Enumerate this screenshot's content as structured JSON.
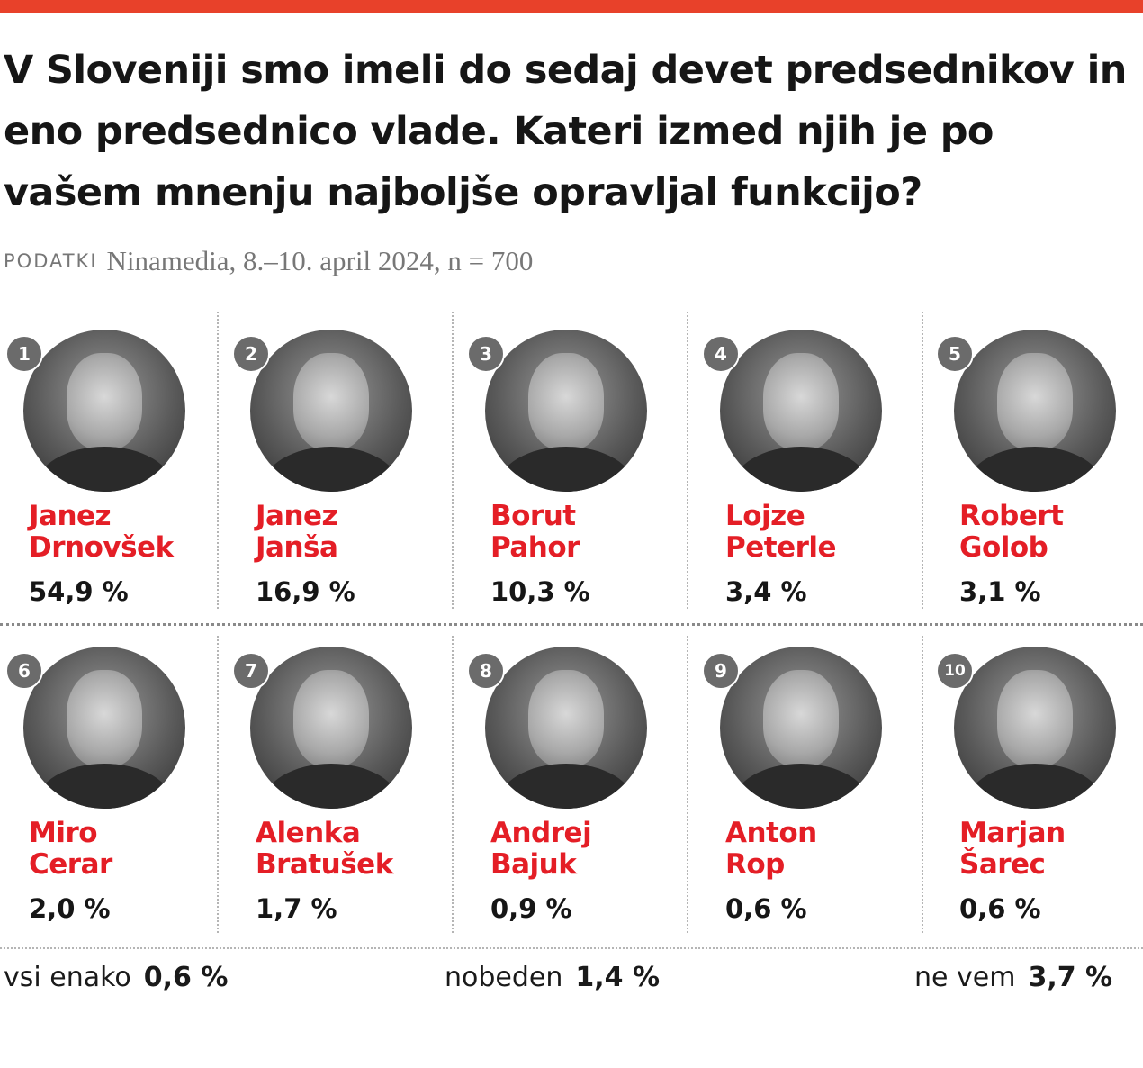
{
  "header": {
    "title": "V Sloveniji smo imeli do sedaj devet predsednikov in eno predsednico vlade. Kateri izmed njih je po vašem mnenju najboljše opravljal funkcijo?",
    "source_label": "PODATKI",
    "source_text": "Ninamedia, 8.–10. april 2024, n = 700"
  },
  "colors": {
    "accent": "#e8412a",
    "name": "#e41e26",
    "badge": "#6b6b6b"
  },
  "chart_data": {
    "type": "table",
    "title": "V Sloveniji smo imeli do sedaj devet predsednikov in eno predsednico vlade. Kateri izmed njih je po vašem mnenju najboljše opravljal funkcijo?",
    "unit": "%",
    "rows": [
      {
        "rank": "1",
        "first": "Janez",
        "last": "Drnovšek",
        "value": 54.9,
        "label": "54,9 %"
      },
      {
        "rank": "2",
        "first": "Janez",
        "last": "Janša",
        "value": 16.9,
        "label": "16,9 %"
      },
      {
        "rank": "3",
        "first": "Borut",
        "last": "Pahor",
        "value": 10.3,
        "label": "10,3 %"
      },
      {
        "rank": "4",
        "first": "Lojze",
        "last": "Peterle",
        "value": 3.4,
        "label": "3,4 %"
      },
      {
        "rank": "5",
        "first": "Robert",
        "last": "Golob",
        "value": 3.1,
        "label": "3,1 %"
      },
      {
        "rank": "6",
        "first": "Miro",
        "last": "Cerar",
        "value": 2.0,
        "label": "2,0 %"
      },
      {
        "rank": "7",
        "first": "Alenka",
        "last": "Bratušek",
        "value": 1.7,
        "label": "1,7 %"
      },
      {
        "rank": "8",
        "first": "Andrej",
        "last": "Bajuk",
        "value": 0.9,
        "label": "0,9 %"
      },
      {
        "rank": "9",
        "first": "Anton",
        "last": "Rop",
        "value": 0.6,
        "label": "0,6 %"
      },
      {
        "rank": "10",
        "first": "Marjan",
        "last": "Šarec",
        "value": 0.6,
        "label": "0,6 %"
      }
    ],
    "other": [
      {
        "label": "vsi enako",
        "value": 0.6,
        "value_label": "0,6 %"
      },
      {
        "label": "nobeden",
        "value": 1.4,
        "value_label": "1,4 %"
      },
      {
        "label": "ne vem",
        "value": 3.7,
        "value_label": "3,7 %"
      }
    ]
  }
}
